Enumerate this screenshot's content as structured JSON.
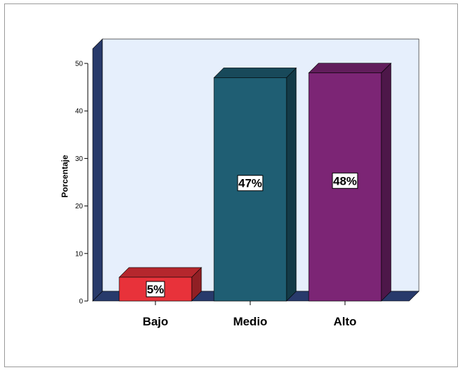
{
  "chart_data": {
    "type": "bar",
    "categories": [
      "Bajo",
      "Medio",
      "Alto"
    ],
    "values": [
      5,
      47,
      48
    ],
    "data_labels": [
      "5%",
      "47%",
      "48%"
    ],
    "ylabel": "Porcentaje",
    "xlabel": "",
    "ylim": [
      0,
      50
    ],
    "yticks": [
      0,
      10,
      20,
      30,
      40,
      50
    ],
    "colors": [
      "#e8323a",
      "#1f5e73",
      "#7c2575"
    ],
    "wall_color": "#e6effc",
    "floor_color": "#283a6b",
    "three_d": true,
    "grid": false
  }
}
